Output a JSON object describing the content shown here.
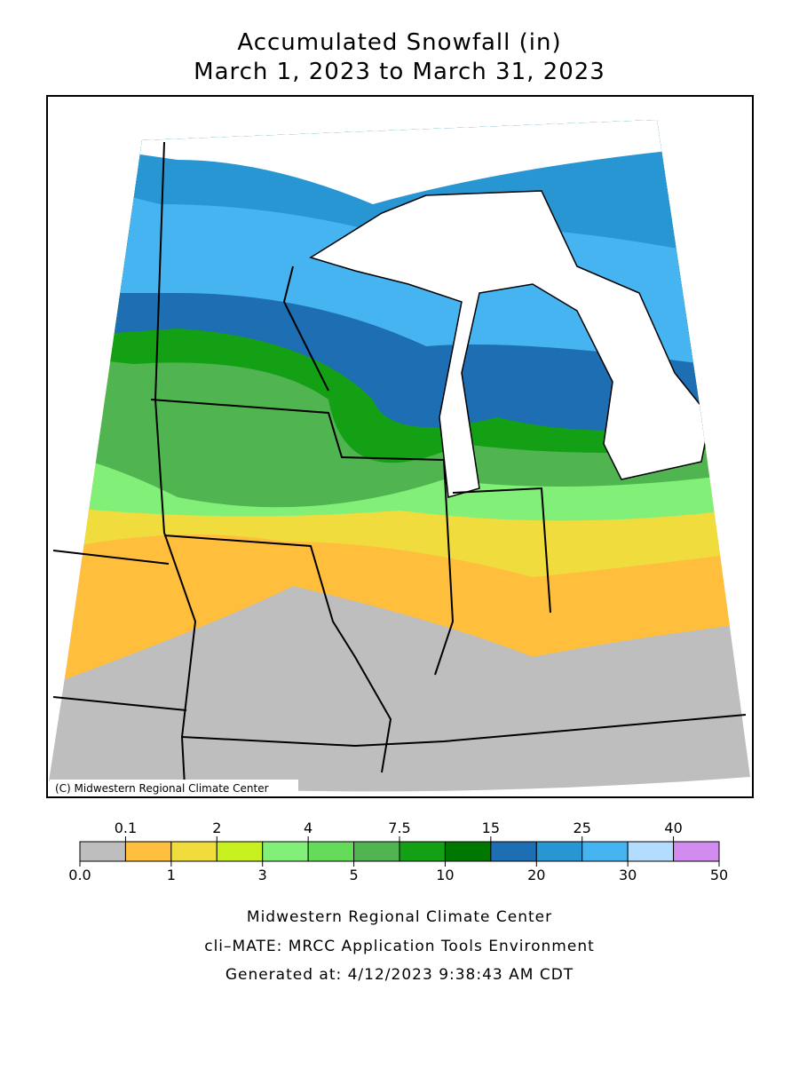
{
  "title": [
    "Accumulated Snowfall (in)",
    "March 1, 2023 to March 31, 2023"
  ],
  "credit": "(C) Midwestern Regional Climate Center",
  "legend": {
    "bounds": [
      {
        "value": 0,
        "label": "0.0"
      },
      0.1,
      1,
      2,
      3,
      4,
      5,
      7.5,
      10,
      15,
      20,
      25,
      30,
      40,
      50
    ],
    "colors": [
      "#bebebe",
      "#ffbe3c",
      "#f0dc3c",
      "#c8f01e",
      "#82f078",
      "#64dc5a",
      "#50b450",
      "#14a014",
      "#007800",
      "#1e6eb4",
      "#2896d2",
      "#46b4f0",
      "#b4dcff",
      "#d28cf0"
    ]
  },
  "footer": [
    "Midwestern Regional Climate Center",
    "cli–MATE: MRCC Application Tools Environment",
    "Generated at: 4/12/2023 9:38:43 AM CDT"
  ]
}
